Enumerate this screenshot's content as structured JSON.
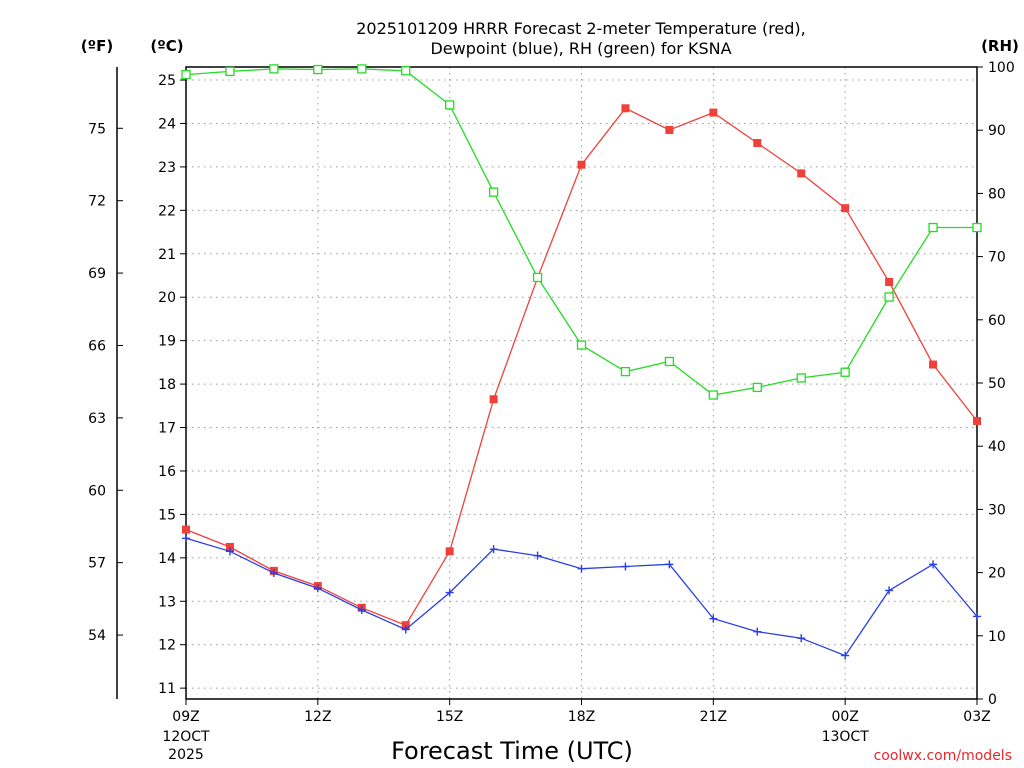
{
  "colors": {
    "temperature": "#f0403a",
    "dewpoint": "#2a3ee6",
    "rh": "#22dd22",
    "grid": "#9a9a9a",
    "credit": "#e8262b"
  },
  "chart_data": {
    "type": "line",
    "title": [
      "2025101209 HRRR Forecast 2-meter Temperature (red),",
      "Dewpoint (blue), RH (green) for KSNA"
    ],
    "xlabel": "Forecast Time (UTC)",
    "credit": "coolwx.com/models",
    "unit_labels": {
      "fahrenheit": "(ºF)",
      "celsius": "(ºC)",
      "rh": "(RH)"
    },
    "x": [
      0,
      1,
      2,
      3,
      4,
      5,
      6,
      7,
      8,
      9,
      10,
      11,
      12,
      13,
      14,
      15,
      16,
      17,
      18
    ],
    "x_ticks": [
      {
        "hour": 0,
        "label": "09Z",
        "sub": [
          "12OCT",
          "2025"
        ]
      },
      {
        "hour": 3,
        "label": "12Z",
        "sub": []
      },
      {
        "hour": 6,
        "label": "15Z",
        "sub": []
      },
      {
        "hour": 9,
        "label": "18Z",
        "sub": []
      },
      {
        "hour": 12,
        "label": "21Z",
        "sub": []
      },
      {
        "hour": 15,
        "label": "00Z",
        "sub": [
          "13OCT"
        ]
      },
      {
        "hour": 18,
        "label": "03Z",
        "sub": []
      }
    ],
    "celsius_axis": {
      "min": 10.75,
      "max": 25.3,
      "ticks": [
        11,
        12,
        13,
        14,
        15,
        16,
        17,
        18,
        19,
        20,
        21,
        22,
        23,
        24,
        25
      ]
    },
    "fahrenheit_axis": {
      "ticks": [
        54,
        57,
        60,
        63,
        66,
        69,
        72,
        75
      ]
    },
    "rh_axis": {
      "min": 0,
      "max": 100,
      "ticks": [
        0,
        10,
        20,
        30,
        40,
        50,
        60,
        70,
        80,
        90,
        100
      ]
    },
    "series": [
      {
        "name": "Temperature",
        "units": "C",
        "marker": "filled-square",
        "values": [
          14.65,
          14.25,
          13.7,
          13.35,
          12.85,
          12.45,
          14.15,
          17.65,
          20.45,
          23.05,
          24.35,
          23.85,
          24.25,
          23.55,
          22.85,
          22.05,
          20.35,
          18.45,
          17.15
        ]
      },
      {
        "name": "Dewpoint",
        "units": "C",
        "marker": "plus",
        "values": [
          14.45,
          14.15,
          13.65,
          13.3,
          12.8,
          12.35,
          13.2,
          14.2,
          14.05,
          13.75,
          13.8,
          13.85,
          12.6,
          12.3,
          12.15,
          11.75,
          13.25,
          13.85,
          12.65
        ]
      },
      {
        "name": "RH",
        "units": "%",
        "marker": "open-square",
        "values": [
          98.8,
          99.3,
          99.7,
          99.6,
          99.7,
          99.4,
          94.0,
          80.2,
          66.7,
          56.0,
          51.8,
          53.4,
          48.1,
          49.3,
          50.8,
          51.7,
          63.6,
          74.6,
          74.6
        ]
      }
    ]
  }
}
